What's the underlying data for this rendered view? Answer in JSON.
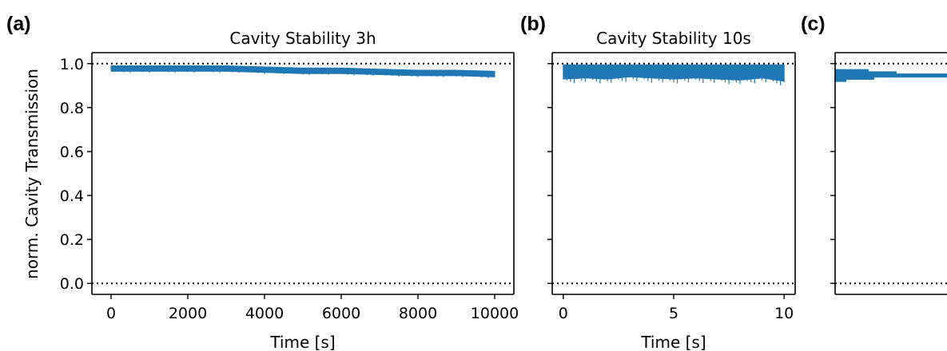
{
  "figure": {
    "panels": [
      {
        "letter": "(a)",
        "title": "Cavity Stability 3h",
        "xlabel": "Time [s]"
      },
      {
        "letter": "(b)",
        "title": "Cavity Stability 10s",
        "xlabel": "Time [s]"
      },
      {
        "letter": "(c)",
        "title": "",
        "xlabel": ""
      }
    ],
    "ylabel": "norm. Cavity Transmission",
    "series_color": "#1f77b4"
  },
  "chart_data": [
    {
      "type": "line",
      "title": "Cavity Stability 3h",
      "xlabel": "Time [s]",
      "ylabel": "norm. Cavity Transmission",
      "xlim": [
        -500,
        10500
      ],
      "ylim": [
        -0.05,
        1.05
      ],
      "xticks": [
        0,
        2000,
        4000,
        6000,
        8000,
        10000
      ],
      "yticks": [
        0.0,
        0.2,
        0.4,
        0.6,
        0.8,
        1.0
      ],
      "reference_lines": [
        1.0,
        0.0
      ],
      "series": [
        {
          "x": [
            0,
            1000,
            2000,
            3000,
            4000,
            5000,
            6000,
            7000,
            8000,
            9000,
            10000
          ],
          "y_upper": [
            0.99,
            0.99,
            0.99,
            0.99,
            0.985,
            0.98,
            0.98,
            0.975,
            0.97,
            0.97,
            0.965
          ],
          "y_lower": [
            0.965,
            0.965,
            0.965,
            0.965,
            0.96,
            0.955,
            0.955,
            0.95,
            0.945,
            0.945,
            0.94
          ]
        }
      ]
    },
    {
      "type": "line",
      "title": "Cavity Stability 10s",
      "xlabel": "Time [s]",
      "ylabel": "norm. Cavity Transmission",
      "xlim": [
        -0.5,
        10.5
      ],
      "ylim": [
        -0.05,
        1.05
      ],
      "xticks": [
        0,
        5,
        10
      ],
      "yticks": [
        0.0,
        0.2,
        0.4,
        0.6,
        0.8,
        1.0
      ],
      "reference_lines": [
        1.0,
        0.0
      ],
      "series": [
        {
          "x": [
            0,
            1,
            2,
            3,
            4,
            5,
            6,
            7,
            8,
            9,
            10
          ],
          "y_upper": [
            0.995,
            0.995,
            0.995,
            0.995,
            0.995,
            0.995,
            0.995,
            0.995,
            0.995,
            0.995,
            0.995
          ],
          "y_lower": [
            0.93,
            0.935,
            0.93,
            0.94,
            0.935,
            0.93,
            0.935,
            0.93,
            0.925,
            0.935,
            0.92
          ]
        }
      ]
    },
    {
      "type": "line",
      "title": "",
      "ylim": [
        -0.05,
        1.05
      ],
      "reference_lines": [
        1.0,
        0.0
      ],
      "series": [
        {
          "steps": [
            {
              "x0": 0.0,
              "x1": 0.3,
              "y": 0.975
            },
            {
              "x0": 0.0,
              "x1": 0.55,
              "y": 0.965
            },
            {
              "x0": 0.0,
              "x1": 1.0,
              "y": 0.955
            },
            {
              "x0": 0.0,
              "x1": 0.35,
              "y": 0.945
            },
            {
              "x0": 0.0,
              "x1": 0.1,
              "y": 0.935
            }
          ]
        }
      ]
    }
  ]
}
